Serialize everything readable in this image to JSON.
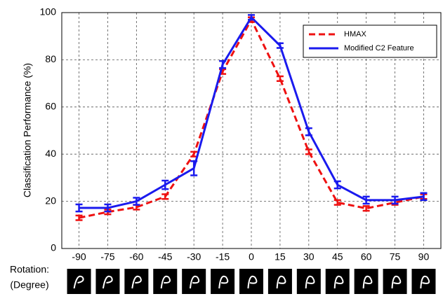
{
  "chart_data": {
    "type": "line",
    "ylabel": "Classification Performance (%)",
    "xlabel_lines": [
      "Rotation:",
      "(Degree)"
    ],
    "x": [
      -90,
      -75,
      -60,
      -45,
      -30,
      -15,
      0,
      15,
      30,
      45,
      60,
      75,
      90
    ],
    "xlim": [
      -99,
      99
    ],
    "xticks": [
      -90,
      -75,
      -60,
      -45,
      -30,
      -15,
      0,
      15,
      30,
      45,
      60,
      75,
      90
    ],
    "ylim": [
      0,
      100
    ],
    "yticks": [
      0,
      20,
      40,
      60,
      80,
      100
    ],
    "grid": true,
    "legend": "upper right",
    "series": [
      {
        "name": "HMAX",
        "color": "#ee1111",
        "style": "dashed",
        "values": [
          13,
          15.5,
          17.5,
          22,
          40,
          75,
          97,
          72,
          41,
          19.5,
          17,
          19.5,
          22
        ],
        "errors": [
          1,
          1,
          1,
          1,
          1,
          1,
          1,
          1,
          1,
          1,
          1,
          1,
          1
        ]
      },
      {
        "name": "Modified C2 Feature",
        "color": "#1a1aee",
        "style": "solid",
        "values": [
          17.2,
          17.2,
          20,
          27,
          34,
          78,
          98,
          86,
          49.5,
          27,
          20.5,
          20.5,
          22
        ],
        "errors": [
          1.5,
          1.5,
          1.5,
          1.8,
          3,
          1.5,
          1,
          1,
          1.5,
          1.5,
          1.5,
          1.5,
          1.5
        ]
      }
    ]
  }
}
